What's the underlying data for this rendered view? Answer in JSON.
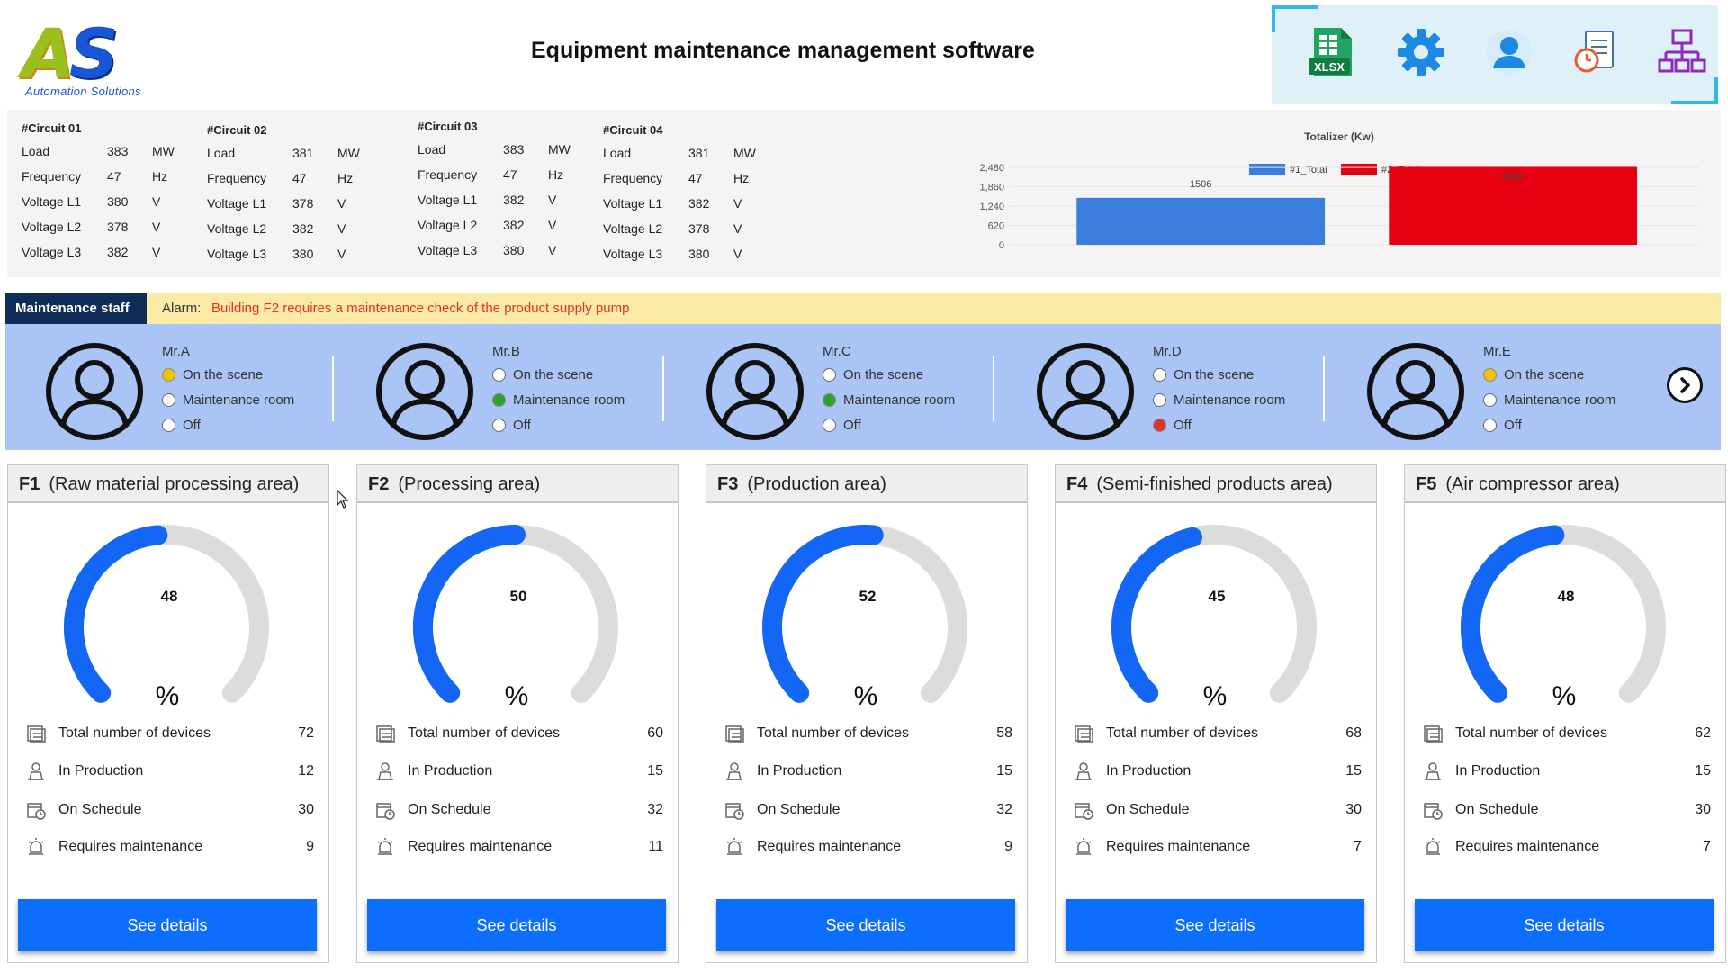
{
  "header": {
    "logo_letters": [
      "A",
      "S"
    ],
    "logo_subtitle": "Automation Solutions",
    "title": "Equipment maintenance management software"
  },
  "toolbar": {
    "buttons": [
      {
        "icon": "xlsx-icon",
        "label": "XLSX"
      },
      {
        "icon": "gear-icon"
      },
      {
        "icon": "user-icon"
      },
      {
        "icon": "report-clock-icon"
      },
      {
        "icon": "network-icon"
      }
    ]
  },
  "circuits": [
    {
      "title": "#Circuit 01",
      "rows": [
        {
          "label": "Load",
          "value": "383",
          "unit": "MW"
        },
        {
          "label": "Frequency",
          "value": "47",
          "unit": "Hz"
        },
        {
          "label": "Voltage L1",
          "value": "380",
          "unit": "V"
        },
        {
          "label": "Voltage L2",
          "value": "378",
          "unit": "V"
        },
        {
          "label": "Voltage L3",
          "value": "382",
          "unit": "V"
        }
      ]
    },
    {
      "title": "#Circuit 02",
      "rows": [
        {
          "label": "Load",
          "value": "381",
          "unit": "MW"
        },
        {
          "label": "Frequency",
          "value": "47",
          "unit": "Hz"
        },
        {
          "label": "Voltage L1",
          "value": "378",
          "unit": "V"
        },
        {
          "label": "Voltage L2",
          "value": "382",
          "unit": "V"
        },
        {
          "label": "Voltage L3",
          "value": "380",
          "unit": "V"
        }
      ]
    },
    {
      "title": "#Circuit 03",
      "rows": [
        {
          "label": "Load",
          "value": "383",
          "unit": "MW"
        },
        {
          "label": "Frequency",
          "value": "47",
          "unit": "Hz"
        },
        {
          "label": "Voltage L1",
          "value": "382",
          "unit": "V"
        },
        {
          "label": "Voltage L2",
          "value": "382",
          "unit": "V"
        },
        {
          "label": "Voltage L3",
          "value": "380",
          "unit": "V"
        }
      ]
    },
    {
      "title": "#Circuit 04",
      "rows": [
        {
          "label": "Load",
          "value": "381",
          "unit": "MW"
        },
        {
          "label": "Frequency",
          "value": "47",
          "unit": "Hz"
        },
        {
          "label": "Voltage L1",
          "value": "382",
          "unit": "V"
        },
        {
          "label": "Voltage L2",
          "value": "378",
          "unit": "V"
        },
        {
          "label": "Voltage L3",
          "value": "380",
          "unit": "V"
        }
      ]
    }
  ],
  "chart_data": {
    "type": "bar",
    "title": "Totalizer (Kw)",
    "categories": [
      "#1_Total",
      "#2_Total"
    ],
    "values": [
      1506,
      2500
    ],
    "colors": [
      "#3b7ddd",
      "#e60012"
    ],
    "yticks": [
      0,
      620,
      1240,
      1860,
      2480
    ],
    "ylim": [
      0,
      2600
    ],
    "legend": "top-center",
    "grid": true
  },
  "staff_section": {
    "tab_label": "Maintenance staff",
    "alarm_label": "Alarm:",
    "alarm_text": "Building F2 requires a maintenance check of the product supply pump",
    "status_labels": [
      "On the scene",
      "Maintenance room",
      "Off"
    ],
    "status_colors": {
      "on_scene": "#f2c200",
      "room": "#2ca32c",
      "off": "#e0322c"
    },
    "staff": [
      {
        "name": "Mr.A",
        "active": 0
      },
      {
        "name": "Mr.B",
        "active": 1
      },
      {
        "name": "Mr.C",
        "active": 1
      },
      {
        "name": "Mr.D",
        "active": 2
      },
      {
        "name": "Mr.E",
        "active": 0
      }
    ],
    "next_icon": "chevron-right-icon"
  },
  "areas": [
    {
      "code": "F1",
      "name": "(Raw material processing area)",
      "percent": 48,
      "unit": "%",
      "stats": {
        "total": "72",
        "production": "12",
        "schedule": "30",
        "maintenance": "9"
      }
    },
    {
      "code": "F2",
      "name": "(Processing area)",
      "percent": 50,
      "unit": "%",
      "stats": {
        "total": "60",
        "production": "15",
        "schedule": "32",
        "maintenance": "11"
      }
    },
    {
      "code": "F3",
      "name": "(Production area)",
      "percent": 52,
      "unit": "%",
      "stats": {
        "total": "58",
        "production": "15",
        "schedule": "32",
        "maintenance": "9"
      }
    },
    {
      "code": "F4",
      "name": "(Semi-finished products area)",
      "percent": 45,
      "unit": "%",
      "stats": {
        "total": "68",
        "production": "15",
        "schedule": "30",
        "maintenance": "7"
      }
    },
    {
      "code": "F5",
      "name": "(Air compressor area)",
      "percent": 48,
      "unit": "%",
      "stats": {
        "total": "62",
        "production": "15",
        "schedule": "30",
        "maintenance": "7"
      }
    }
  ],
  "area_labels": {
    "total": "Total number of devices",
    "production": "In Production",
    "schedule": "On Schedule",
    "maintenance": "Requires maintenance",
    "details_button": "See details"
  },
  "colors": {
    "accent": "#0d6efd",
    "gauge_fill": "#1466f5",
    "gauge_track": "#dcdcdc",
    "staff_panel": "#a9c4f5",
    "alarm_bar": "#fbe9a6",
    "tab_dark": "#0f2d57"
  }
}
